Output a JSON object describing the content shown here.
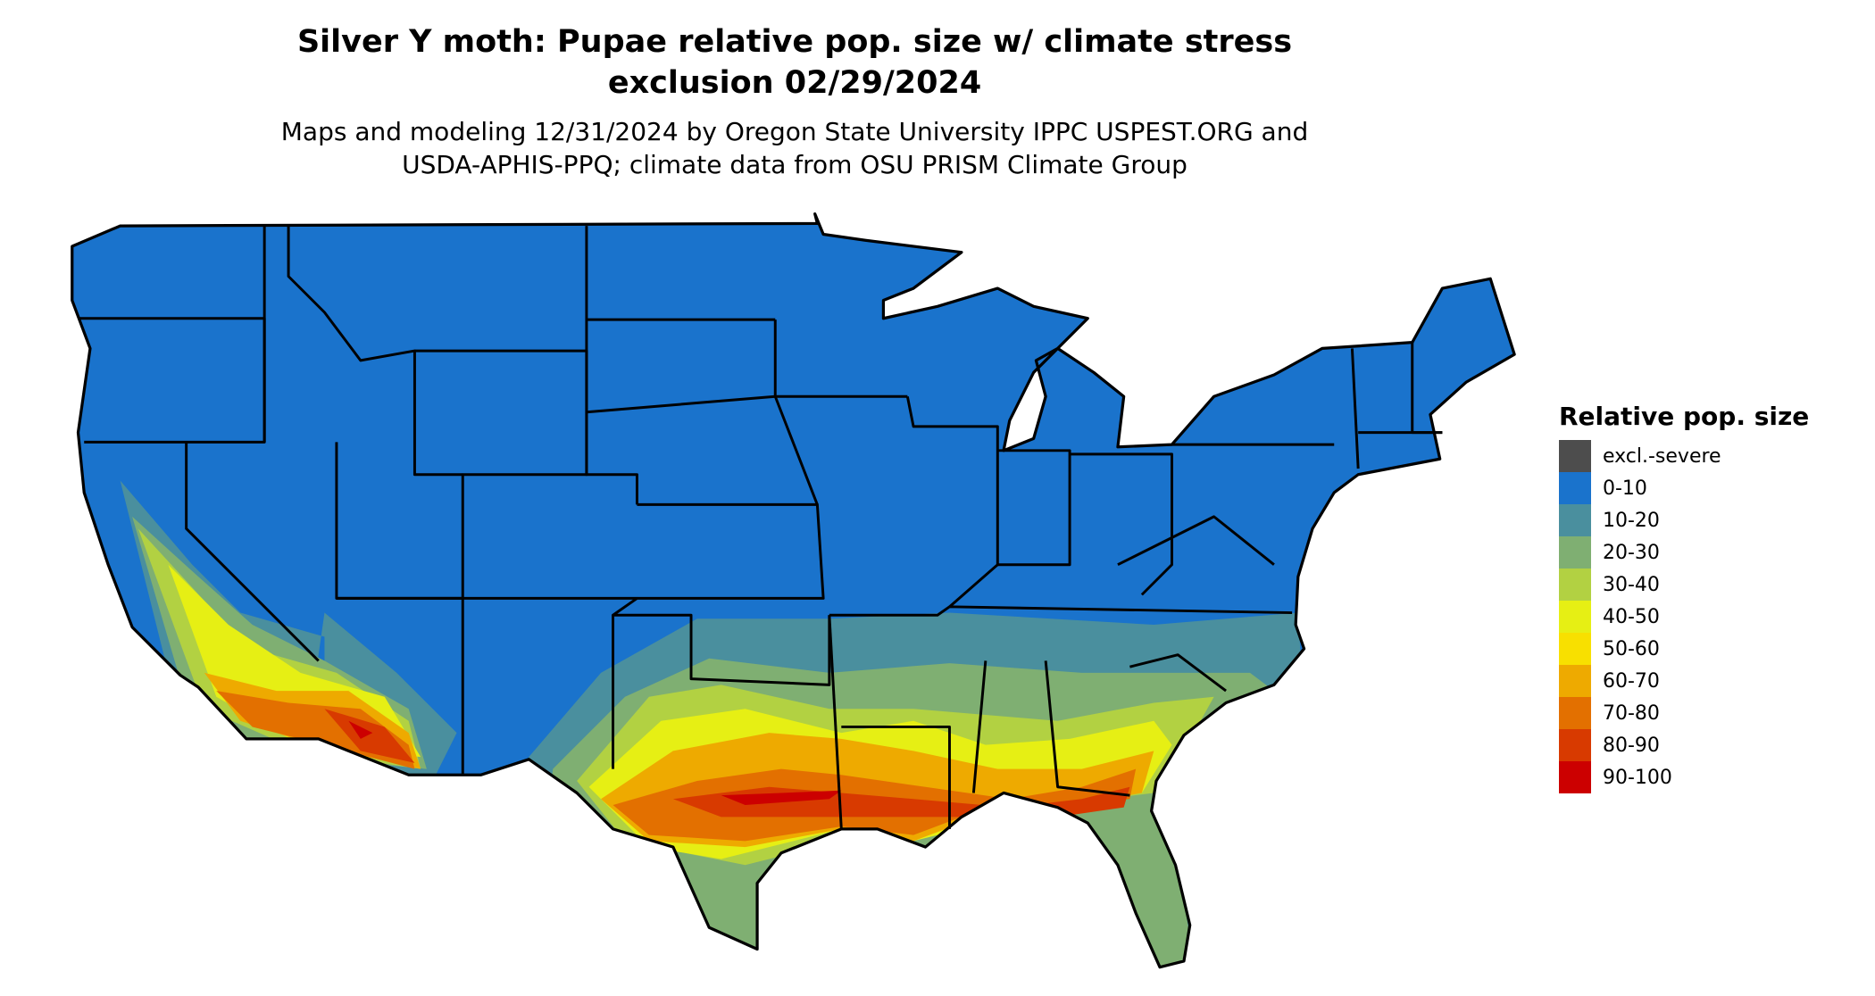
{
  "chart_data": {
    "type": "map",
    "title_line1": "Silver Y moth: Pupae relative pop. size w/ climate stress",
    "title_line2": "exclusion 02/29/2024",
    "subtitle_line1": "Maps and modeling 12/31/2024 by Oregon State University IPPC USPEST.ORG and",
    "subtitle_line2": "USDA-APHIS-PPQ; climate data from OSU PRISM Climate Group",
    "region": "Contiguous United States",
    "legend": {
      "title": "Relative pop. size",
      "placement": "right",
      "items": [
        {
          "label": "excl.-severe",
          "color": "#4d4d4d"
        },
        {
          "label": "0-10",
          "color": "#1a73cc"
        },
        {
          "label": "10-20",
          "color": "#4a8f9e"
        },
        {
          "label": "20-30",
          "color": "#7faf72"
        },
        {
          "label": "30-40",
          "color": "#b2d142"
        },
        {
          "label": "40-50",
          "color": "#e6ef14"
        },
        {
          "label": "50-60",
          "color": "#f8e000"
        },
        {
          "label": "60-70",
          "color": "#eeaa00"
        },
        {
          "label": "70-80",
          "color": "#e37000"
        },
        {
          "label": "80-90",
          "color": "#d83a00"
        },
        {
          "label": "90-100",
          "color": "#cc0000"
        }
      ]
    }
  }
}
